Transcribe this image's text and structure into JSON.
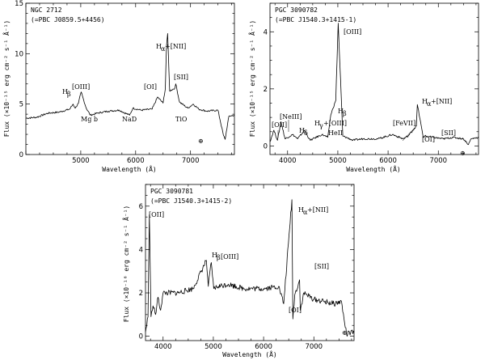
{
  "chart_data": [
    {
      "type": "line",
      "title": "NGC 2712",
      "subtitle": "(=PBC J0859.5+4456)",
      "xlabel": "Wavelength (Å)",
      "ylabel": "Flux (×10⁻¹⁵ erg cm⁻² s⁻¹ Å⁻¹)",
      "xlim": [
        4000,
        7800
      ],
      "ylim": [
        0,
        15
      ],
      "xticks": [
        5000,
        6000,
        7000
      ],
      "yticks": [
        0,
        5,
        10,
        15
      ],
      "series": [
        {
          "x": [
            4000,
            4200,
            4400,
            4600,
            4800,
            4860,
            4900,
            4959,
            5007,
            5100,
            5175,
            5300,
            5500,
            5700,
            5890,
            5950,
            6100,
            6300,
            6400,
            6500,
            6540,
            6563,
            6583,
            6620,
            6716,
            6731,
            6800,
            6950,
            7050,
            7150,
            7300,
            7500,
            7600,
            7630,
            7700,
            7800
          ],
          "y": [
            3.6,
            3.7,
            4.1,
            4.2,
            4.5,
            5.0,
            4.6,
            5.1,
            6.2,
            4.6,
            3.9,
            4.1,
            4.3,
            4.4,
            3.9,
            4.6,
            4.4,
            4.5,
            5.7,
            5.1,
            6.5,
            10.8,
            12.0,
            6.3,
            6.6,
            7.0,
            5.2,
            4.6,
            5.0,
            4.5,
            4.3,
            4.4,
            1.9,
            1.5,
            3.8,
            3.9
          ]
        }
      ],
      "annotations": [
        "H",
        "β",
        "[OIII]",
        "Mg b",
        "NaD",
        "[OI]",
        "H",
        "α",
        "+[NII]",
        "[SII]",
        "TiO",
        "⊕"
      ]
    },
    {
      "type": "line",
      "title": "PGC 3090782",
      "subtitle": "(=PBC J1540.3+1415-1)",
      "xlabel": "Wavelength (Å)",
      "ylabel": "Flux (×10⁻¹⁵ erg cm⁻² s⁻¹ Å⁻¹)",
      "xlim": [
        3650,
        7800
      ],
      "ylim": [
        -0.3,
        5
      ],
      "xticks": [
        4000,
        5000,
        6000,
        7000
      ],
      "yticks": [
        0,
        2,
        4
      ],
      "series": [
        {
          "x": [
            3650,
            3727,
            3800,
            3869,
            3950,
            4101,
            4200,
            4340,
            4363,
            4450,
            4686,
            4800,
            4861,
            4959,
            5007,
            5100,
            5300,
            5500,
            5800,
            6087,
            6300,
            6400,
            6563,
            6583,
            6700,
            6731,
            6900,
            7100,
            7300,
            7500,
            7600,
            7650,
            7800
          ],
          "y": [
            0.15,
            0.55,
            0.2,
            0.85,
            0.25,
            0.4,
            0.25,
            0.55,
            0.45,
            0.2,
            0.4,
            0.3,
            1.1,
            1.6,
            4.3,
            0.35,
            0.2,
            0.25,
            0.25,
            0.4,
            0.25,
            0.35,
            0.7,
            1.45,
            0.3,
            0.35,
            0.3,
            0.25,
            0.3,
            0.25,
            0.05,
            0.25,
            0.3
          ]
        }
      ],
      "annotations": [
        "[OII]",
        "[NeIII]",
        "H",
        "δ",
        "H",
        "γ",
        "+[OIII]",
        "HeII",
        "H",
        "β",
        "[OIII]",
        "[FeVII]",
        "[OI]",
        "H",
        "α",
        "+[NII]",
        "[SII]",
        "⊕"
      ]
    },
    {
      "type": "line",
      "title": "PGC 3090781",
      "subtitle": "(=PBC J1540.3+1415-2)",
      "xlabel": "Wavelength (Å)",
      "ylabel": "Flux (×10⁻¹⁶ erg cm⁻² s⁻¹ Å⁻¹)",
      "xlim": [
        3650,
        7800
      ],
      "ylim": [
        -0.2,
        7
      ],
      "xticks": [
        4000,
        5000,
        6000,
        7000
      ],
      "yticks": [
        0,
        2,
        4,
        6
      ],
      "series": [
        {
          "x": [
            3650,
            3700,
            3727,
            3760,
            3800,
            3850,
            3900,
            3950,
            4000,
            4300,
            4600,
            4861,
            4900,
            4959,
            5007,
            5100,
            5300,
            5600,
            6000,
            6300,
            6400,
            6563,
            6583,
            6620,
            6716,
            6731,
            6800,
            7000,
            7200,
            7400,
            7550,
            7600,
            7650,
            7800
          ],
          "y": [
            0.2,
            0.9,
            5.6,
            0.9,
            1.4,
            1.0,
            1.8,
            1.2,
            2.0,
            2.0,
            2.2,
            3.5,
            2.3,
            3.4,
            2.2,
            2.3,
            2.4,
            2.2,
            2.2,
            2.3,
            1.5,
            6.3,
            0.8,
            1.9,
            2.6,
            1.2,
            2.0,
            1.7,
            1.6,
            1.5,
            1.6,
            0.8,
            0.1,
            0.2
          ]
        }
      ],
      "annotations": [
        "[OII]",
        "H",
        "β",
        "[OIII]",
        "[OI]",
        "H",
        "α",
        "+[NII]",
        "[SII]",
        "⊕"
      ]
    }
  ]
}
